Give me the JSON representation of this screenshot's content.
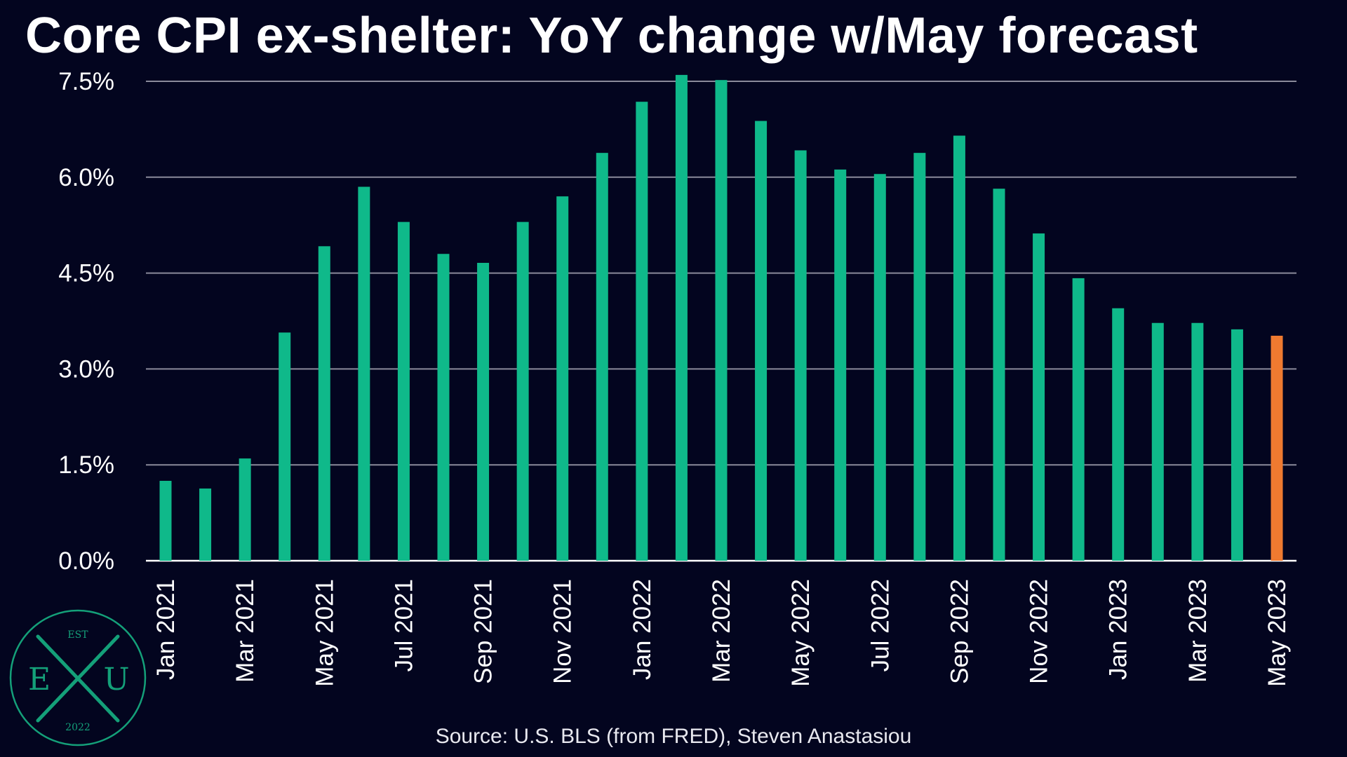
{
  "colors": {
    "background": "#03051f",
    "bar": "#0fb98a",
    "forecast_bar": "#ef7a30",
    "grid": "#8a8a9a",
    "logo": "#14a079"
  },
  "source": "Source: U.S. BLS (from FRED), Steven Anastasiou",
  "logo": {
    "est": "EST",
    "left_letter": "E",
    "center_letter": "X",
    "right_letter": "U",
    "year": "2022"
  },
  "chart_data": {
    "type": "bar",
    "title": "Core CPI ex-shelter: YoY change w/May forecast",
    "xlabel": "",
    "ylabel": "",
    "ylim": [
      0,
      7.5
    ],
    "yticks": [
      "0.0%",
      "1.5%",
      "3.0%",
      "4.5%",
      "6.0%",
      "7.5%"
    ],
    "grid": true,
    "categories": [
      "Jan 2021",
      "Feb 2021",
      "Mar 2021",
      "Apr 2021",
      "May 2021",
      "Jun 2021",
      "Jul 2021",
      "Aug 2021",
      "Sep 2021",
      "Oct 2021",
      "Nov 2021",
      "Dec 2021",
      "Jan 2022",
      "Feb 2022",
      "Mar 2022",
      "Apr 2022",
      "May 2022",
      "Jun 2022",
      "Jul 2022",
      "Aug 2022",
      "Sep 2022",
      "Oct 2022",
      "Nov 2022",
      "Dec 2022",
      "Jan 2023",
      "Feb 2023",
      "Mar 2023",
      "Apr 2023",
      "May 2023"
    ],
    "x_tick_labels": [
      "Jan 2021",
      "",
      "Mar 2021",
      "",
      "May 2021",
      "",
      "Jul 2021",
      "",
      "Sep 2021",
      "",
      "Nov 2021",
      "",
      "Jan 2022",
      "",
      "Mar 2022",
      "",
      "May 2022",
      "",
      "Jul 2022",
      "",
      "Sep 2022",
      "",
      "Nov 2022",
      "",
      "Jan 2023",
      "",
      "Mar 2023",
      "",
      "May 2023"
    ],
    "values": [
      1.25,
      1.13,
      1.6,
      3.57,
      4.92,
      5.85,
      5.3,
      4.8,
      4.66,
      5.3,
      5.7,
      6.38,
      7.18,
      7.6,
      7.52,
      6.88,
      6.42,
      6.12,
      6.05,
      6.38,
      6.65,
      5.82,
      5.12,
      4.42,
      3.95,
      3.72,
      3.72,
      3.62,
      3.52
    ],
    "forecast": [
      false,
      false,
      false,
      false,
      false,
      false,
      false,
      false,
      false,
      false,
      false,
      false,
      false,
      false,
      false,
      false,
      false,
      false,
      false,
      false,
      false,
      false,
      false,
      false,
      false,
      false,
      false,
      false,
      true
    ]
  }
}
